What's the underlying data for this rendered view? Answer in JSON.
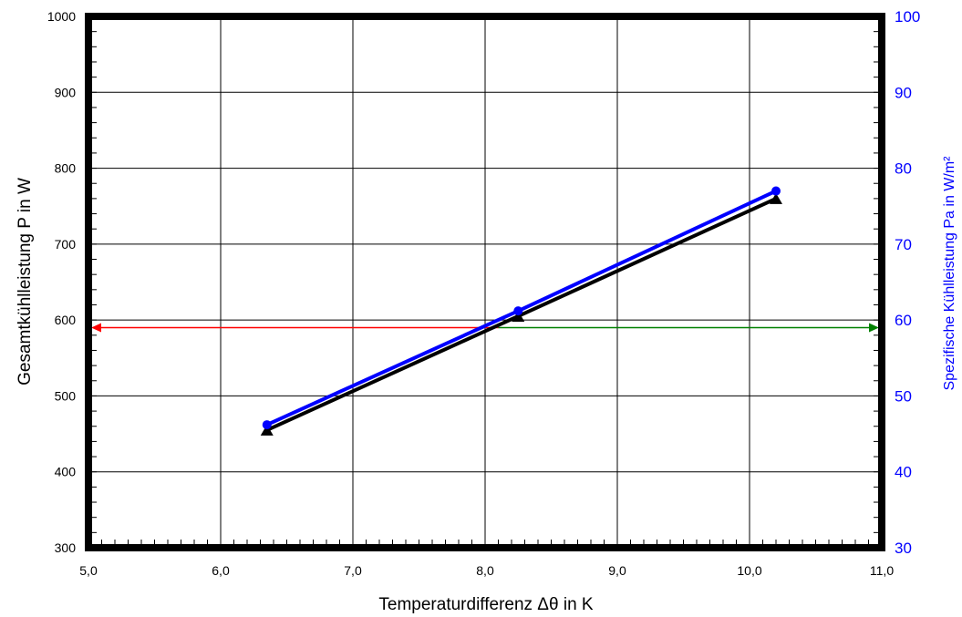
{
  "chart_data": {
    "type": "line",
    "xlabel": "Temperaturdifferenz Δθ in K",
    "ylabel": "Gesamtkühlleistung  P  in W",
    "y2label": "Spezifische Kühlleistung Pa in W/m²",
    "xlim": [
      5.0,
      11.0
    ],
    "ylim": [
      300,
      1000
    ],
    "y2lim": [
      30,
      100
    ],
    "x_ticks": [
      "5,0",
      "6,0",
      "7,0",
      "8,0",
      "9,0",
      "10,0",
      "11,0"
    ],
    "y_ticks": [
      "300",
      "400",
      "500",
      "600",
      "700",
      "800",
      "900",
      "1000"
    ],
    "y2_ticks": [
      "30",
      "40",
      "50",
      "60",
      "70",
      "80",
      "90",
      "100"
    ],
    "grid": true,
    "series": [
      {
        "axis": "left",
        "color": "#000000",
        "marker": "triangle",
        "points": [
          {
            "x": 6.35,
            "y": 455
          },
          {
            "x": 8.25,
            "y": 605
          },
          {
            "x": 10.2,
            "y": 760
          }
        ]
      },
      {
        "axis": "right",
        "color": "#0000ff",
        "marker": "circle",
        "points": [
          {
            "x": 6.35,
            "y": 46.2
          },
          {
            "x": 8.25,
            "y": 61.2
          },
          {
            "x": 10.2,
            "y": 77.0
          }
        ]
      }
    ],
    "annotations": [
      {
        "type": "arrow-left",
        "color": "#ff0000",
        "y_value": 590,
        "x_from": 8.1,
        "x_to": 5.0
      },
      {
        "type": "arrow-right",
        "color": "#008000",
        "y_value": 590,
        "x_from": 8.1,
        "x_to": 11.0
      }
    ]
  }
}
